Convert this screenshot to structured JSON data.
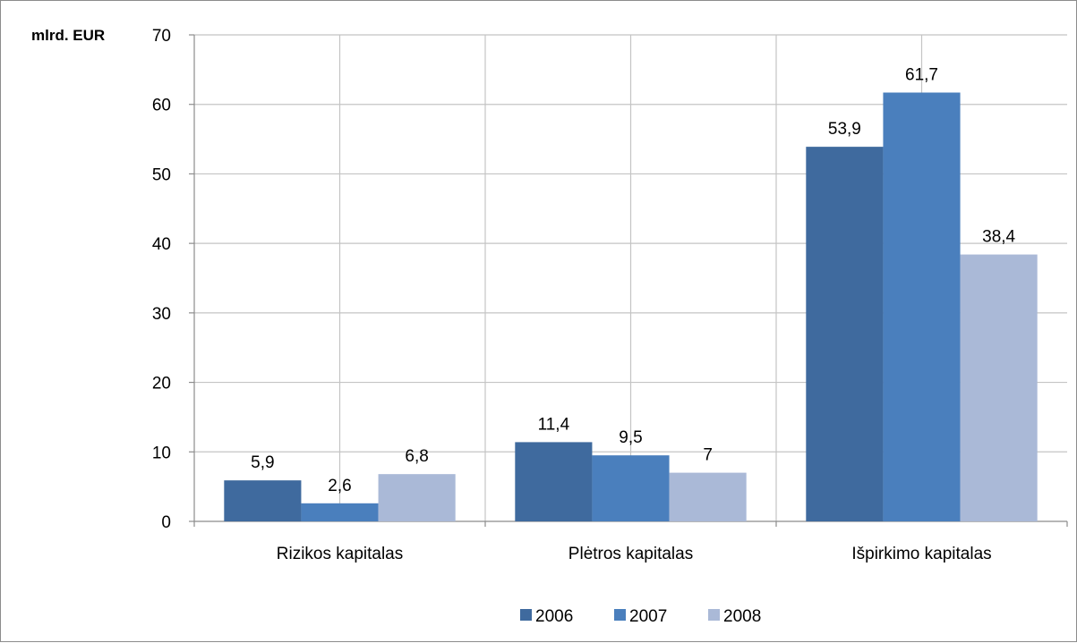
{
  "chart_data": {
    "type": "bar",
    "ylabel": "mlrd. EUR",
    "ylim": [
      0,
      70
    ],
    "yticks": [
      0,
      10,
      20,
      30,
      40,
      50,
      60,
      70
    ],
    "categories": [
      "Rizikos kapitalas",
      "Plėtros kapitalas",
      "Išpirkimo kapitalas"
    ],
    "series": [
      {
        "name": "2006",
        "color": "#3f6a9e",
        "values": [
          5.9,
          11.4,
          53.9
        ],
        "labels": [
          "5,9",
          "11,4",
          "53,9"
        ]
      },
      {
        "name": "2007",
        "color": "#4a7fbd",
        "values": [
          2.6,
          9.5,
          61.7
        ],
        "labels": [
          "2,6",
          "9,5",
          "61,7"
        ]
      },
      {
        "name": "2008",
        "color": "#aab9d7",
        "values": [
          6.8,
          7,
          38.4
        ],
        "labels": [
          "6,8",
          "7",
          "38,4"
        ]
      }
    ],
    "grid": true,
    "legend": "bottom"
  }
}
